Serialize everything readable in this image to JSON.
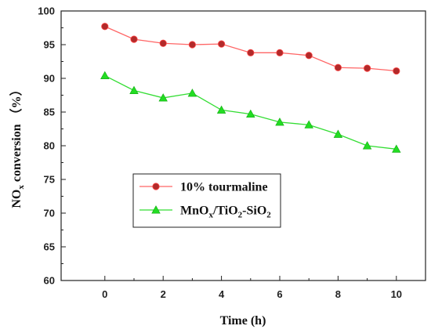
{
  "chart_data": {
    "type": "line",
    "xlabel": "Time (h)",
    "ylabel": {
      "main": "NO",
      "sub": "x",
      "rest": " conversion （%）"
    },
    "xlim": [
      -1.5,
      11
    ],
    "ylim": [
      60,
      100
    ],
    "xticks": [
      0,
      2,
      4,
      6,
      8,
      10
    ],
    "yticks": [
      60,
      65,
      70,
      75,
      80,
      85,
      90,
      95,
      100
    ],
    "x": [
      0,
      1,
      2,
      3,
      4,
      5,
      6,
      7,
      8,
      9,
      10
    ],
    "series": [
      {
        "name": "10% tourmaline",
        "name_parts": [
          {
            "t": "10% tourmaline",
            "s": "n"
          }
        ],
        "color": "#ff6666",
        "marker_color": "#b22a2a",
        "marker": "circle",
        "values": [
          97.7,
          95.8,
          95.2,
          95.0,
          95.1,
          93.8,
          93.8,
          93.4,
          91.6,
          91.5,
          91.1
        ]
      },
      {
        "name": "MnOx/TiO2-SiO2",
        "name_parts": [
          {
            "t": "MnO",
            "s": "n"
          },
          {
            "t": "x",
            "s": "sub"
          },
          {
            "t": "/TiO",
            "s": "n"
          },
          {
            "t": "2",
            "s": "sub"
          },
          {
            "t": "-SiO",
            "s": "n"
          },
          {
            "t": "2",
            "s": "sub"
          }
        ],
        "color": "#33dd33",
        "marker_color": "#22dd22",
        "marker": "triangle",
        "values": [
          90.4,
          88.2,
          87.1,
          87.8,
          85.3,
          84.7,
          83.5,
          83.1,
          81.7,
          80.0,
          79.5
        ]
      }
    ],
    "legend": "center-left",
    "grid": false
  }
}
